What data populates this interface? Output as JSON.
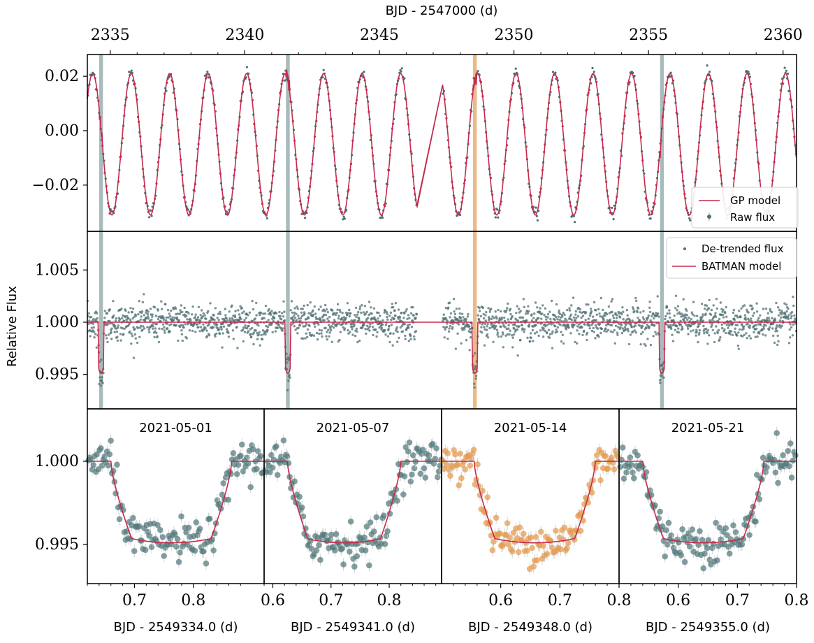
{
  "colors": {
    "raw": "#4f6f73",
    "gp": "#c62a4a",
    "detrended": "#4f6f73",
    "batman": "#c62a4a",
    "band": "#9fb4b5",
    "band_highlight": "#e8b27c",
    "phase_point": "#53787b",
    "phase_point_highlight": "#e59a4c"
  },
  "figure": {
    "top_axis_label": "BJD - 2547000 (d)",
    "y_axis_label": "Relative Flux"
  },
  "chart_data": [
    {
      "type": "line",
      "panel": "raw-lightcurve",
      "x_axis": {
        "label": "BJD - 2547000 (d)",
        "position": "top",
        "ticks": [
          2335,
          2340,
          2345,
          2350,
          2355,
          2360
        ],
        "range": [
          2334.15,
          2360.5
        ]
      },
      "y_axis": {
        "ticks": [
          0.02,
          0.0,
          -0.02
        ],
        "tick_labels": [
          "0.02",
          "0.00",
          "−0.02"
        ],
        "range": [
          -0.037,
          0.028
        ]
      },
      "legend": {
        "placement": "bottom-right",
        "entries": [
          "GP model",
          "Raw flux"
        ]
      },
      "oscillation": {
        "period_days": 1.43,
        "amplitude": 0.026,
        "offset": -0.005,
        "phase_peak_at": 2334.35
      },
      "gap": [
        2346.4,
        2347.35
      ],
      "transit_bands": [
        2334.66,
        2341.6,
        2348.55,
        2355.5
      ],
      "highlighted_band": 2,
      "series": [
        {
          "name": "Raw flux",
          "style": "points"
        },
        {
          "name": "GP model",
          "style": "line"
        }
      ]
    },
    {
      "type": "scatter",
      "panel": "detrended-lightcurve",
      "y_axis": {
        "ticks": [
          1.005,
          1.0,
          0.995
        ],
        "tick_labels": [
          "1.005",
          "1.000",
          "0.995"
        ],
        "range": [
          0.9917,
          1.0087
        ]
      },
      "legend": {
        "placement": "top-right",
        "entries": [
          "De-trended flux",
          "BATMAN model"
        ]
      },
      "baseline": 1.0,
      "transit_depth": 0.0049,
      "transit_duration_days": 0.22,
      "scatter_sigma": 0.00085,
      "series": [
        {
          "name": "De-trended flux",
          "style": "points"
        },
        {
          "name": "BATMAN model",
          "style": "line"
        }
      ]
    },
    {
      "type": "scatter",
      "panel": "transit-zoom",
      "y_axis": {
        "ticks": [
          1.0,
          0.995
        ],
        "tick_labels": [
          "1.000",
          "0.995"
        ],
        "range": [
          0.99265,
          1.00315
        ]
      },
      "transits": [
        {
          "date": "2021-05-01",
          "xlabel": "BJD - 2549334.0 (d)",
          "xlim": [
            0.62,
            0.92
          ],
          "ticks": [
            0.7,
            0.8
          ],
          "tick_labels": [
            "0.7",
            "0.8"
          ],
          "ingress": 0.66,
          "egress": 0.865,
          "highlight": false
        },
        {
          "date": "2021-05-07",
          "xlabel": "BJD - 2549341.0 (d)",
          "xlim": [
            0.585,
            0.89
          ],
          "ticks": [
            0.6,
            0.7,
            0.8
          ],
          "tick_labels": [
            "0.6",
            "0.7",
            "0.8"
          ],
          "ingress": 0.625,
          "egress": 0.82,
          "highlight": false
        },
        {
          "date": "2021-05-14",
          "xlabel": "BJD - 2549348.0 (d)",
          "xlim": [
            0.5,
            0.8
          ],
          "ticks": [
            0.6,
            0.7,
            0.8
          ],
          "tick_labels": [
            "0.6",
            "0.7",
            "0.8"
          ],
          "ingress": 0.555,
          "egress": 0.76,
          "highlight": true
        },
        {
          "date": "2021-05-21",
          "xlabel": "BJD - 2549355.0 (d)",
          "xlim": [
            0.5,
            0.8
          ],
          "ticks": [
            0.6,
            0.7,
            0.8
          ],
          "tick_labels": [
            "0.6",
            "0.7",
            "0.8"
          ],
          "ingress": 0.54,
          "egress": 0.745,
          "highlight": false
        }
      ],
      "depth": 0.0049,
      "scatter_sigma": 0.0006
    }
  ]
}
